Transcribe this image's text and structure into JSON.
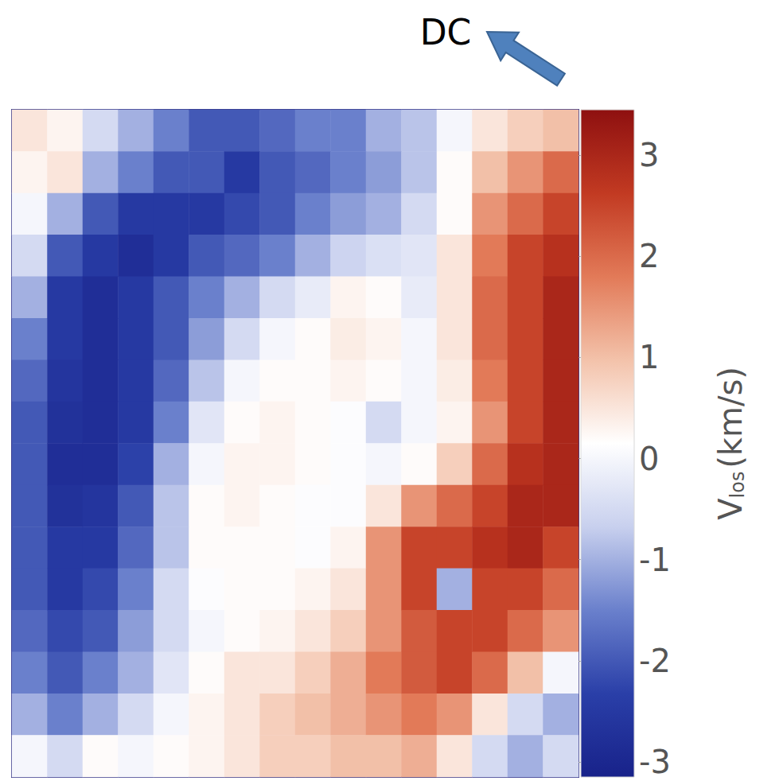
{
  "chart_data": {
    "type": "heatmap",
    "annotation": "DC",
    "tick_labels": false,
    "cells": [
      [
        0.5,
        0.3,
        -0.5,
        -1,
        -1.5,
        -2,
        -2,
        -1.8,
        -1.5,
        -1.5,
        -1,
        -0.8,
        0,
        0.5,
        0.8,
        1
      ],
      [
        0.3,
        0.5,
        -1,
        -1.5,
        -2,
        -2,
        -2.5,
        -2,
        -1.8,
        -1.5,
        -1.2,
        -0.8,
        0.2,
        1,
        1.5,
        2
      ],
      [
        0,
        -1,
        -2,
        -2.5,
        -2.5,
        -2.5,
        -2.2,
        -2,
        -1.5,
        -1.2,
        -1,
        -0.5,
        0.2,
        1.5,
        2,
        2.5
      ],
      [
        -0.5,
        -2,
        -2.5,
        -2.8,
        -2.5,
        -2,
        -1.8,
        -1.5,
        -1,
        -0.6,
        -0.4,
        -0.3,
        0.5,
        1.8,
        2.5,
        2.8
      ],
      [
        -1,
        -2.5,
        -2.8,
        -2.5,
        -2,
        -1.5,
        -1,
        -0.5,
        -0.2,
        0.3,
        0.2,
        -0.2,
        0.5,
        2,
        2.5,
        3
      ],
      [
        -1.5,
        -2.5,
        -2.8,
        -2.5,
        -2,
        -1.2,
        -0.5,
        0,
        0.2,
        0.4,
        0.3,
        0,
        0.5,
        2,
        2.5,
        3
      ],
      [
        -1.8,
        -2.6,
        -2.8,
        -2.5,
        -1.8,
        -0.8,
        0,
        0.2,
        0.2,
        0.3,
        0.2,
        0,
        0.4,
        1.8,
        2.5,
        3
      ],
      [
        -2,
        -2.7,
        -2.8,
        -2.5,
        -1.5,
        -0.3,
        0.2,
        0.3,
        0.2,
        0.1,
        -0.5,
        0,
        0.3,
        1.5,
        2.5,
        3
      ],
      [
        -2,
        -2.8,
        -2.8,
        -2.3,
        -1,
        0,
        0.3,
        0.3,
        0.2,
        0.1,
        0,
        0.2,
        0.8,
        2,
        2.8,
        3
      ],
      [
        -2,
        -2.7,
        -2.6,
        -2,
        -0.8,
        0.2,
        0.3,
        0.2,
        0.1,
        0.1,
        0.5,
        1.5,
        2,
        2.5,
        3,
        3
      ],
      [
        -2,
        -2.5,
        -2.5,
        -1.8,
        -0.8,
        0.2,
        0.2,
        0.2,
        0.1,
        0.3,
        1.5,
        2.5,
        2.5,
        2.8,
        3,
        2.5
      ],
      [
        -2,
        -2.5,
        -2.2,
        -1.5,
        -0.5,
        0.1,
        0.2,
        0.2,
        0.3,
        0.5,
        1.5,
        2.5,
        -1,
        2.5,
        2.5,
        2
      ],
      [
        -1.8,
        -2.2,
        -2,
        -1.2,
        -0.5,
        0,
        0.2,
        0.3,
        0.5,
        0.8,
        1.5,
        2.2,
        2.5,
        2.5,
        2,
        1.5
      ],
      [
        -1.5,
        -2,
        -1.5,
        -1,
        -0.3,
        0.2,
        0.5,
        0.5,
        0.8,
        1.2,
        1.8,
        2.2,
        2.5,
        2,
        1,
        0
      ],
      [
        -1,
        -1.5,
        -1,
        -0.5,
        0,
        0.3,
        0.5,
        0.8,
        1,
        1.2,
        1.5,
        1.8,
        1.5,
        0.5,
        -0.5,
        -1
      ],
      [
        0,
        -0.5,
        0.2,
        0,
        0.2,
        0.3,
        0.5,
        0.8,
        0.8,
        1,
        1,
        1.2,
        0.5,
        -0.5,
        -1,
        -0.5
      ]
    ],
    "colorbar": {
      "label": {
        "text": "V",
        "subscript": "los",
        "unit": "(km/s)"
      },
      "range": [
        -3.15,
        3.45
      ],
      "ticks": [
        -3,
        -2,
        -1,
        0,
        1,
        2,
        3
      ]
    }
  }
}
